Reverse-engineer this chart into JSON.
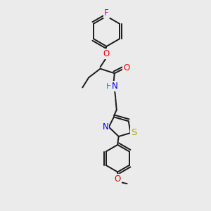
{
  "bg_color": "#ebebeb",
  "bond_color": "#1a1a1a",
  "bond_width": 1.4,
  "atom_colors": {
    "F": "#cc00cc",
    "O": "#ee0000",
    "N": "#0000ee",
    "S": "#aaaa00",
    "C": "#1a1a1a",
    "H": "#228888"
  },
  "font_size": 8.5,
  "font_size_small": 7.5
}
